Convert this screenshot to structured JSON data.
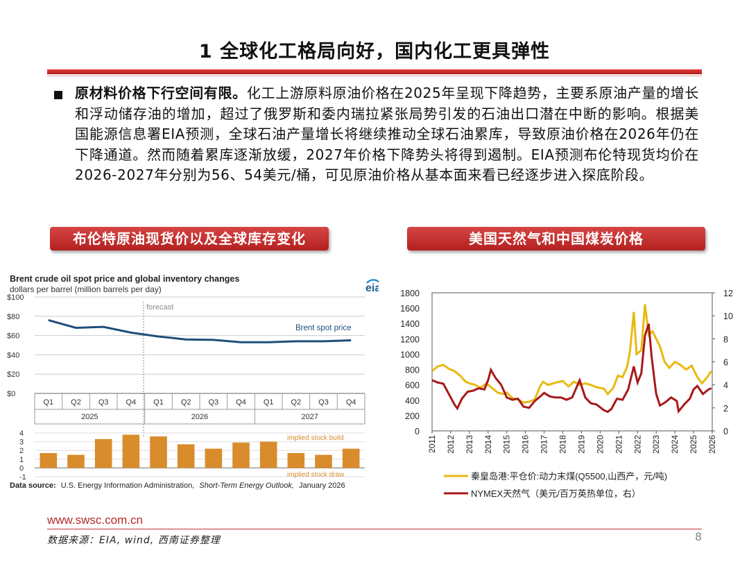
{
  "header": {
    "title": "1 全球化工格局向好，国内化工更具弹性"
  },
  "body": {
    "lead": "原材料价格下行空间有限。",
    "text": "化工上游原料原油价格在2025年呈现下降趋势，主要系原油产量的增长和浮动储存油的增加，超过了俄罗斯和委内瑞拉紧张局势引发的石油出口潜在中断的影响。根据美国能源信息署EIA预测，全球石油产量增长将继续推动全球石油累库，导致原油价格在2026年仍在下降通道。然而随着累库逐渐放缓，2027年价格下降势头将得到遏制。EIA预测布伦特现货均价在2026-2027年分别为56、54美元/桶，可见原油价格从基本面来看已经逐步进入探底阶段。"
  },
  "banners": {
    "left": "布伦特原油现货价以及全球库存变化",
    "right": "美国天然气和中国煤炭价格"
  },
  "footer": {
    "url": "www.swsc.com.cn",
    "source": "数据来源：EIA, wind, 西南证券整理",
    "page": "8"
  },
  "chart_data": [
    {
      "type": "line",
      "title": "Brent crude oil spot price and global inventory changes",
      "subtitle": "dollars per barrel (million barrels per day)",
      "logo": "eia",
      "forecast_label": "forecast",
      "series_label": "Brent spot price",
      "price_ticks": [
        "$100",
        "$80",
        "$60",
        "$40",
        "$20",
        "$0"
      ],
      "ylim": [
        0,
        100
      ],
      "quarters": [
        "Q1",
        "Q2",
        "Q3",
        "Q4",
        "Q1",
        "Q2",
        "Q3",
        "Q4",
        "Q1",
        "Q2",
        "Q3",
        "Q4"
      ],
      "years": [
        "2025",
        "2026",
        "2027"
      ],
      "brent_price": [
        76,
        68,
        69,
        63,
        59,
        56,
        55.5,
        53,
        53,
        54,
        54,
        55
      ],
      "inventory": {
        "type": "bar",
        "values": [
          1.7,
          1.5,
          3.3,
          3.8,
          3.6,
          2.7,
          2.2,
          2.9,
          3.0,
          1.7,
          1.5,
          2.2
        ],
        "ticks": [
          "4",
          "3",
          "2",
          "1",
          "0",
          "-1"
        ],
        "ylim": [
          -1,
          4
        ],
        "build_label": "implied stock build",
        "draw_label": "implied stock draw",
        "color": "#d98c2b"
      },
      "source_prefix": "Data source:",
      "source_text": "U.S. Energy Information Administration,",
      "source_italic": "Short-Term Energy Outlook,",
      "source_suffix": "January 2026"
    },
    {
      "type": "line",
      "x_ticks": [
        "2011",
        "2012",
        "2013",
        "2014",
        "2015",
        "2016",
        "2017",
        "2018",
        "2019",
        "2020",
        "2021",
        "2022",
        "2023",
        "2024",
        "2025",
        "2026"
      ],
      "y_left_ticks": [
        "1800",
        "1600",
        "1400",
        "1200",
        "1000",
        "800",
        "600",
        "400",
        "200",
        "0"
      ],
      "y_right_ticks": [
        "12",
        "10",
        "8",
        "6",
        "4",
        "2",
        "0"
      ],
      "ylim_left": [
        0,
        1800
      ],
      "ylim_right": [
        0,
        12
      ],
      "series": [
        {
          "name": "秦皇岛港:平仓价:动力末煤(Q5500,山西产，元/吨)",
          "axis": "left",
          "color": "#e8b90f",
          "x": [
            2011.0,
            2011.3,
            2011.6,
            2011.9,
            2012.2,
            2012.5,
            2012.8,
            2013.0,
            2013.3,
            2013.6,
            2013.9,
            2014.2,
            2014.5,
            2014.8,
            2015.0,
            2015.3,
            2015.6,
            2015.9,
            2016.2,
            2016.5,
            2016.8,
            2016.95,
            2017.2,
            2017.5,
            2017.8,
            2018.0,
            2018.3,
            2018.6,
            2018.9,
            2019.2,
            2019.5,
            2019.8,
            2020.2,
            2020.4,
            2020.7,
            2020.95,
            2021.2,
            2021.45,
            2021.6,
            2021.8,
            2021.95,
            2022.2,
            2022.4,
            2022.6,
            2022.8,
            2023.0,
            2023.2,
            2023.45,
            2023.7,
            2024.0,
            2024.3,
            2024.6,
            2024.9,
            2025.2,
            2025.45,
            2025.7,
            2025.95
          ],
          "y": [
            780,
            840,
            860,
            810,
            780,
            720,
            640,
            620,
            600,
            560,
            620,
            560,
            500,
            480,
            500,
            430,
            410,
            370,
            380,
            410,
            590,
            640,
            600,
            620,
            640,
            650,
            580,
            640,
            600,
            620,
            600,
            570,
            550,
            480,
            560,
            720,
            700,
            840,
            1050,
            1550,
            1000,
            1050,
            1650,
            1250,
            1300,
            1200,
            1100,
            900,
            820,
            900,
            860,
            800,
            850,
            700,
            620,
            690,
            780
          ]
        },
        {
          "name": "NYMEX天然气（美元/百万英热单位，右）",
          "axis": "right",
          "color": "#a81818",
          "x": [
            2011.0,
            2011.3,
            2011.6,
            2011.9,
            2012.2,
            2012.35,
            2012.6,
            2012.9,
            2013.2,
            2013.5,
            2013.8,
            2014.0,
            2014.15,
            2014.4,
            2014.7,
            2015.0,
            2015.3,
            2015.6,
            2015.9,
            2016.2,
            2016.5,
            2016.8,
            2017.0,
            2017.3,
            2017.6,
            2017.9,
            2018.2,
            2018.5,
            2018.9,
            2019.2,
            2019.5,
            2019.8,
            2020.2,
            2020.4,
            2020.6,
            2020.9,
            2021.2,
            2021.5,
            2021.8,
            2022.0,
            2022.2,
            2022.4,
            2022.6,
            2022.75,
            2022.9,
            2023.0,
            2023.2,
            2023.5,
            2023.8,
            2024.1,
            2024.2,
            2024.5,
            2024.8,
            2025.0,
            2025.2,
            2025.5,
            2025.8,
            2025.95
          ],
          "y": [
            4.4,
            4.2,
            4.1,
            3.2,
            2.3,
            1.95,
            2.8,
            3.4,
            3.5,
            3.7,
            3.6,
            4.4,
            5.3,
            4.6,
            4.0,
            2.9,
            2.7,
            2.8,
            2.1,
            2.0,
            2.6,
            3.0,
            3.3,
            3.0,
            2.9,
            2.9,
            2.7,
            2.9,
            4.4,
            2.9,
            2.4,
            2.3,
            1.8,
            1.65,
            1.9,
            2.8,
            2.7,
            3.6,
            5.6,
            4.2,
            5.0,
            8.3,
            9.3,
            6.5,
            4.5,
            3.2,
            2.2,
            2.5,
            2.9,
            2.6,
            1.7,
            2.3,
            2.8,
            3.6,
            3.9,
            3.2,
            3.6,
            3.7
          ]
        }
      ]
    }
  ]
}
